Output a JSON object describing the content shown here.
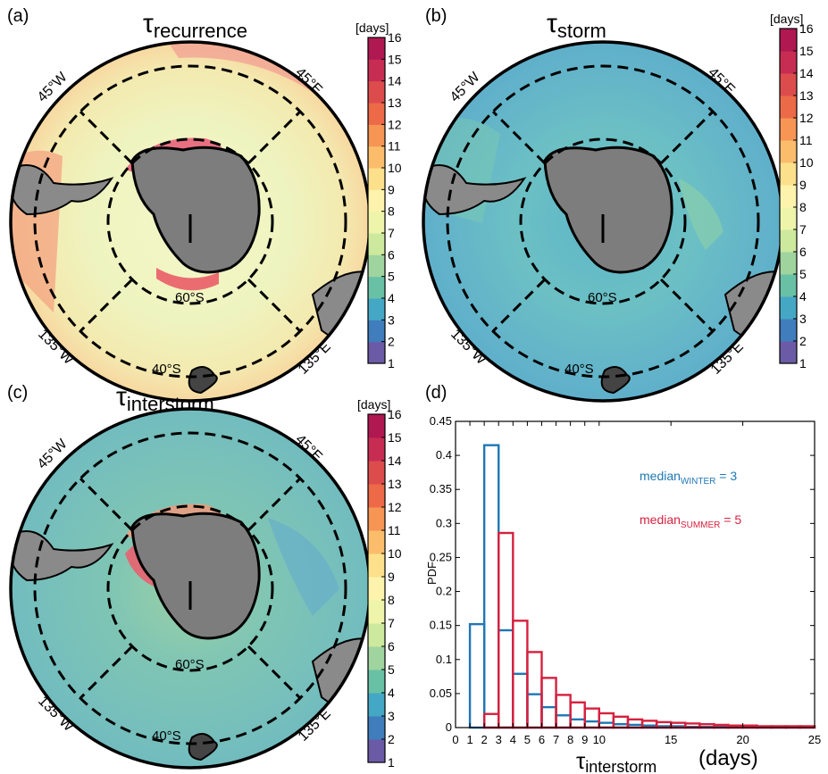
{
  "panels": [
    {
      "id": "a",
      "panel_label": "(a)",
      "title_main": "τ",
      "title_sub": "recurrence",
      "map_labels": {
        "nw": "45°W",
        "ne": "45°E",
        "sw": "135°W",
        "se": "135°E",
        "lat_inner": "60°S",
        "lat_outer": "40°S"
      },
      "colorbar": {
        "unit": "[days]",
        "ticks": [
          "1",
          "2",
          "3",
          "4",
          "5",
          "6",
          "7",
          "8",
          "9",
          "10",
          "11",
          "12",
          "13",
          "14",
          "15",
          "16"
        ]
      }
    },
    {
      "id": "b",
      "panel_label": "(b)",
      "title_main": "τ",
      "title_sub": "storm",
      "map_labels": {
        "nw": "45°W",
        "ne": "45°E",
        "sw": "135°W",
        "se": "135°E",
        "lat_inner": "60°S",
        "lat_outer": "40°S"
      },
      "colorbar": {
        "unit": "[days]",
        "ticks": [
          "1",
          "2",
          "3",
          "4",
          "5",
          "6",
          "7",
          "8",
          "9",
          "10",
          "11",
          "12",
          "13",
          "14",
          "15",
          "16"
        ]
      }
    },
    {
      "id": "c",
      "panel_label": "(c)",
      "title_main": "τ",
      "title_sub": "interstorm",
      "map_labels": {
        "nw": "45°W",
        "ne": "45°E",
        "sw": "135°W",
        "se": "135°E",
        "lat_inner": "60°S",
        "lat_outer": "40°S"
      },
      "colorbar": {
        "unit": "[days]",
        "ticks": [
          "1",
          "2",
          "3",
          "4",
          "5",
          "6",
          "7",
          "8",
          "9",
          "10",
          "11",
          "12",
          "13",
          "14",
          "15",
          "16"
        ]
      }
    }
  ],
  "colorbar_colors": [
    "#6b5ba6",
    "#3f7dbc",
    "#44a8c5",
    "#68c1a5",
    "#9fd49f",
    "#cde99d",
    "#eef5aa",
    "#fdf3ac",
    "#fde08b",
    "#fbbd6c",
    "#f69554",
    "#ec6a47",
    "#dd4c4d",
    "#c72d52",
    "#b01852"
  ],
  "chart_data": {
    "type": "bar",
    "panel_label": "(d)",
    "ylabel": "PDF",
    "xlabel_main": "τ",
    "xlabel_sub": "interstorm",
    "xlabel_unit": "(days)",
    "xlim": [
      0,
      25
    ],
    "ylim": [
      0,
      0.45
    ],
    "x_ticks": [
      "0",
      "1",
      "2",
      "3",
      "4",
      "5",
      "6",
      "7",
      "8",
      "9",
      "10",
      "15",
      "20",
      "25"
    ],
    "y_ticks": [
      "0",
      "0.05",
      "0.1",
      "0.15",
      "0.2",
      "0.25",
      "0.3",
      "0.35",
      "0.4",
      "0.45"
    ],
    "bin_left_edges": [
      1,
      2,
      3,
      4,
      5,
      6,
      7,
      8,
      9,
      10,
      11,
      12,
      13,
      14,
      15,
      16,
      17,
      18,
      19,
      20,
      21,
      22,
      23,
      24
    ],
    "series": [
      {
        "label": "median",
        "label_sub": "WINTER",
        "label_value": " = 3",
        "color": "#1f77b4",
        "values": [
          0.152,
          0.415,
          0.143,
          0.079,
          0.049,
          0.03,
          0.018,
          0.012,
          0.009,
          0.007,
          0.005,
          0.004,
          0.003,
          0.002,
          0.002,
          0.001,
          0.001,
          0.001,
          0.001,
          0.001,
          0.0005,
          0.0005,
          0.0005,
          0.0005
        ]
      },
      {
        "label": "median",
        "label_sub": "SUMMER",
        "label_value": " = 5",
        "color": "#d6213f",
        "values": [
          0,
          0.02,
          0.286,
          0.157,
          0.111,
          0.073,
          0.048,
          0.037,
          0.028,
          0.021,
          0.016,
          0.012,
          0.01,
          0.008,
          0.007,
          0.006,
          0.005,
          0.004,
          0.003,
          0.003,
          0.002,
          0.002,
          0.002,
          0.002
        ]
      }
    ]
  }
}
